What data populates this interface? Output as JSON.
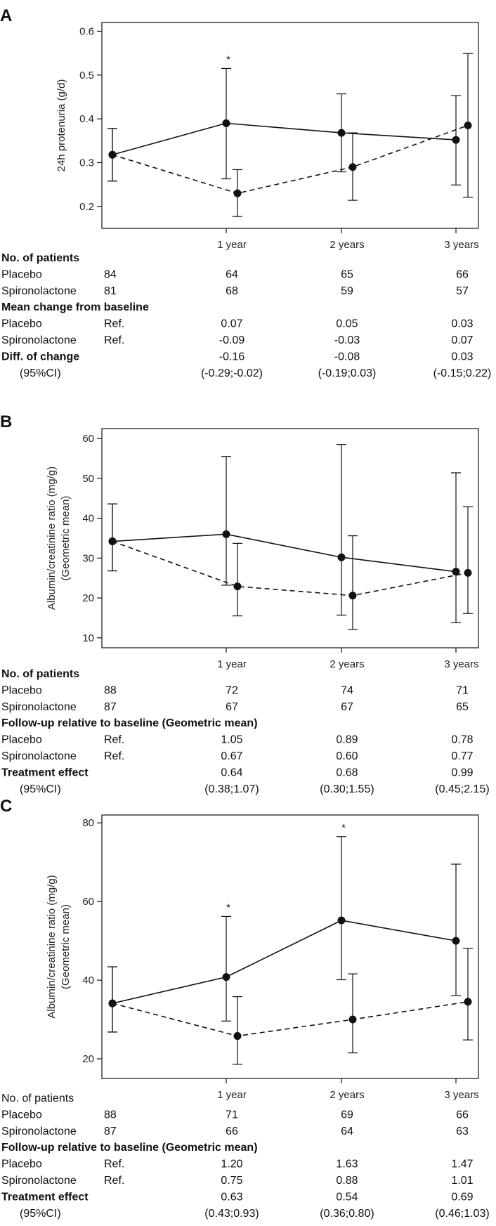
{
  "panels": [
    {
      "label": "A",
      "chart_data": {
        "type": "line",
        "ylabel": "24h protenuria (g/d)",
        "ylim": [
          0.15,
          0.62
        ],
        "yticks": [
          0.2,
          0.3,
          0.4,
          0.5,
          0.6
        ],
        "ytick_labels": [
          "0.2",
          "0.3",
          "0.4",
          "0.5",
          "0.6"
        ],
        "x_labels": [
          "1 year",
          "2 years",
          "3 years"
        ],
        "series": [
          {
            "name": "Placebo",
            "style": "solid",
            "values": [
              0.318,
              0.39,
              0.368,
              0.352
            ],
            "lower": [
              0.258,
              0.263,
              0.279,
              0.249
            ],
            "upper": [
              0.378,
              0.515,
              0.457,
              0.453
            ]
          },
          {
            "name": "Spironolactone",
            "style": "dashed",
            "values": [
              0.318,
              0.23,
              0.29,
              0.385
            ],
            "lower": [
              0.258,
              0.177,
              0.214,
              0.221
            ],
            "upper": [
              0.378,
              0.284,
              0.368,
              0.549
            ]
          }
        ],
        "annotations": [
          {
            "text": "*",
            "point": 1
          }
        ]
      },
      "table": {
        "rows": [
          {
            "label": "No. of patients",
            "bold": true,
            "base": "",
            "cells": [
              "",
              "",
              ""
            ]
          },
          {
            "label": "Placebo",
            "bold": false,
            "base": "84",
            "cells": [
              "64",
              "65",
              "66"
            ]
          },
          {
            "label": "Spironolactone",
            "bold": false,
            "base": "81",
            "cells": [
              "68",
              "59",
              "57"
            ]
          },
          {
            "label": "Mean change from baseline",
            "bold": true,
            "base": "",
            "cells": [
              "",
              "",
              ""
            ]
          },
          {
            "label": "Placebo",
            "bold": false,
            "base": "Ref.",
            "cells": [
              "0.07",
              "0.05",
              "0.03"
            ]
          },
          {
            "label": "Spironolactone",
            "bold": false,
            "base": "Ref.",
            "cells": [
              "-0.09",
              "-0.03",
              "0.07"
            ]
          },
          {
            "label": "Diff. of change",
            "bold": true,
            "base": "",
            "cells": [
              "-0.16",
              "-0.08",
              "0.03"
            ]
          },
          {
            "label": "(95%CI)",
            "bold": false,
            "indent": true,
            "base": "",
            "cells": [
              "(-0.29;-0.02)",
              "(-0.19;0.03)",
              "(-0.15;0.22)"
            ]
          }
        ]
      }
    },
    {
      "label": "B",
      "chart_data": {
        "type": "line",
        "ylabel": "Albumin/creatinine ratio (mg/g)",
        "ylabel2": "(Geometric mean)",
        "ylim": [
          7.5,
          62.5
        ],
        "yticks": [
          10,
          20,
          30,
          40,
          50,
          60
        ],
        "ytick_labels": [
          "10",
          "20",
          "30",
          "40",
          "50",
          "60"
        ],
        "x_labels": [
          "1 year",
          "2 years",
          "3 years"
        ],
        "series": [
          {
            "name": "Placebo",
            "style": "solid",
            "values": [
              34.2,
              36.0,
              30.2,
              26.6
            ],
            "lower": [
              26.8,
              23.2,
              15.7,
              13.8
            ],
            "upper": [
              43.6,
              55.5,
              58.5,
              51.4
            ]
          },
          {
            "name": "Spironolactone",
            "style": "dashed",
            "values": [
              34.2,
              22.9,
              20.6,
              26.3
            ],
            "lower": [
              26.8,
              15.5,
              12.1,
              16.1
            ],
            "upper": [
              43.6,
              33.7,
              35.6,
              42.9
            ]
          }
        ],
        "annotations": []
      },
      "table": {
        "rows": [
          {
            "label": "No. of patients",
            "bold": true,
            "base": "",
            "cells": [
              "",
              "",
              ""
            ]
          },
          {
            "label": "Placebo",
            "bold": false,
            "base": "88",
            "cells": [
              "72",
              "74",
              "71"
            ]
          },
          {
            "label": "Spironolactone",
            "bold": false,
            "base": "87",
            "cells": [
              "67",
              "67",
              "65"
            ]
          },
          {
            "label": "Follow-up relative to baseline (Geometric mean)",
            "bold": true,
            "base": "",
            "cells": [
              "",
              "",
              ""
            ]
          },
          {
            "label": "Placebo",
            "bold": false,
            "base": "Ref.",
            "cells": [
              "1.05",
              "0.89",
              "0.78"
            ]
          },
          {
            "label": "Spironolactone",
            "bold": false,
            "base": "Ref.",
            "cells": [
              "0.67",
              "0.60",
              "0.77"
            ]
          },
          {
            "label": "Treatment effect",
            "bold": true,
            "base": "",
            "cells": [
              "0.64",
              "0.68",
              "0.99"
            ]
          },
          {
            "label": "(95%CI)",
            "bold": false,
            "indent": true,
            "base": "",
            "cells": [
              "(0.38;1.07)",
              "(0.30;1.55)",
              "(0.45;2.15)"
            ]
          }
        ]
      }
    },
    {
      "label": "C",
      "chart_data": {
        "type": "line",
        "ylabel": "Albumin/creatinine ratio (mg/g)",
        "ylabel2": "(Geometric mean)",
        "ylim": [
          15,
          82
        ],
        "yticks": [
          20,
          40,
          60,
          80
        ],
        "ytick_labels": [
          "20",
          "40",
          "60",
          "80"
        ],
        "x_labels": [
          "1 year",
          "2 years",
          "3 years"
        ],
        "series": [
          {
            "name": "Placebo",
            "style": "solid",
            "values": [
              34.1,
              40.8,
              55.2,
              50.0
            ],
            "lower": [
              26.8,
              29.6,
              40.1,
              36.1
            ],
            "upper": [
              43.4,
              56.2,
              76.5,
              69.5
            ]
          },
          {
            "name": "Spironolactone",
            "style": "dashed",
            "values": [
              34.1,
              25.8,
              30.0,
              34.5
            ],
            "lower": [
              26.8,
              18.6,
              21.5,
              24.8
            ],
            "upper": [
              43.4,
              35.8,
              41.6,
              48.1
            ]
          }
        ],
        "annotations": [
          {
            "text": "*",
            "point": 1
          },
          {
            "text": "*",
            "point": 2
          }
        ]
      },
      "table": {
        "rows": [
          {
            "label": "No. of patients",
            "bold": false,
            "base": "",
            "cells": [
              "",
              "",
              ""
            ]
          },
          {
            "label": "Placebo",
            "bold": false,
            "base": "88",
            "cells": [
              "71",
              "69",
              "66"
            ]
          },
          {
            "label": "Spironolactone",
            "bold": false,
            "base": "87",
            "cells": [
              "66",
              "64",
              "63"
            ]
          },
          {
            "label": "Follow-up relative to baseline (Geometric mean)",
            "bold": true,
            "base": "",
            "cells": [
              "",
              "",
              ""
            ]
          },
          {
            "label": "Placebo",
            "bold": false,
            "base": "Ref.",
            "cells": [
              "1.20",
              "1.63",
              "1.47"
            ]
          },
          {
            "label": "Spironolactone",
            "bold": false,
            "base": "Ref.",
            "cells": [
              "0.75",
              "0.88",
              "1.01"
            ]
          },
          {
            "label": "Treatment effect",
            "bold": true,
            "base": "",
            "cells": [
              "0.63",
              "0.54",
              "0.69"
            ]
          },
          {
            "label": "(95%CI)",
            "bold": false,
            "indent": true,
            "base": "",
            "cells": [
              "(0.43;0.93)",
              "(0.36;0.80)",
              "(0.46;1.03)"
            ]
          }
        ]
      }
    }
  ]
}
